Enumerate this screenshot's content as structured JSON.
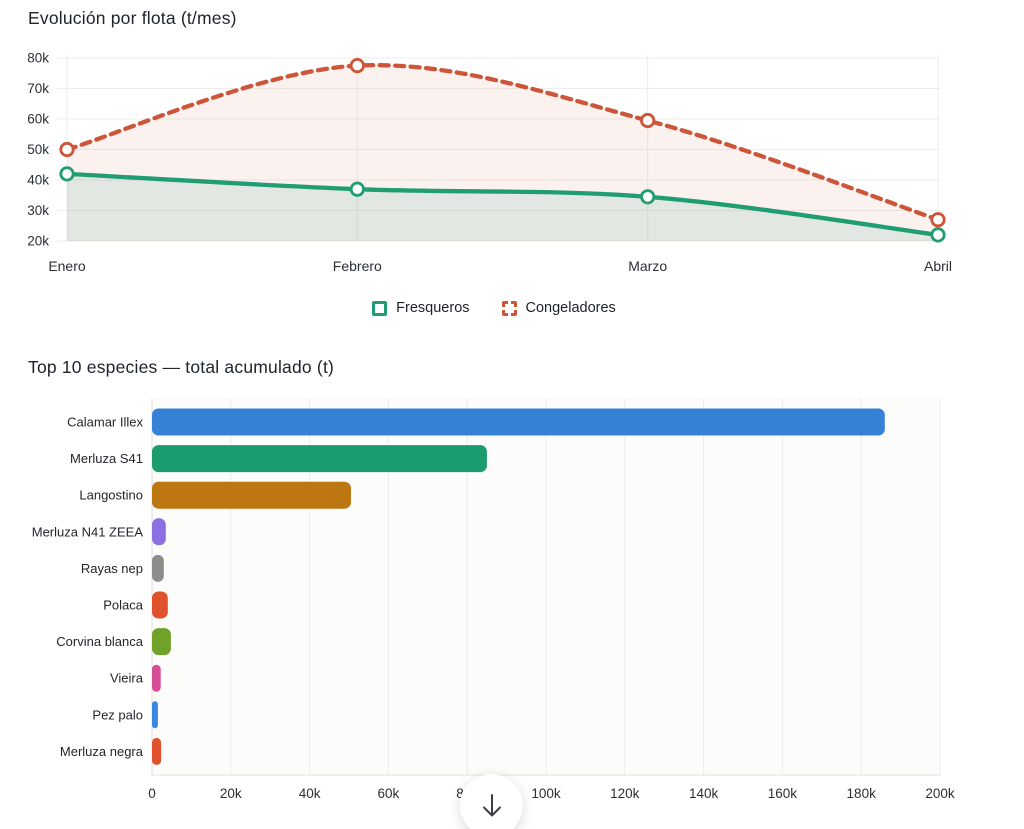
{
  "chart_data": [
    {
      "type": "line",
      "title": "Evolución por flota (t/mes)",
      "x": [
        "Enero",
        "Febrero",
        "Marzo",
        "Abril"
      ],
      "series": [
        {
          "name": "Fresqueros",
          "values": [
            42000,
            37000,
            34500,
            22000
          ],
          "color": "#219d74",
          "line_style": "solid",
          "fill": "rgba(27,158,119,0.11)"
        },
        {
          "name": "Congeladores",
          "values": [
            50000,
            77500,
            59500,
            27000
          ],
          "color": "#cd563a",
          "line_style": "dashed",
          "fill": "rgba(205,85,55,0.08)"
        }
      ],
      "ylim": [
        20000,
        80000
      ],
      "y_ticks": [
        {
          "value": 80000,
          "label": "80k"
        },
        {
          "value": 70000,
          "label": "70k"
        },
        {
          "value": 60000,
          "label": "60k"
        },
        {
          "value": 50000,
          "label": "50k"
        },
        {
          "value": 40000,
          "label": "40k"
        },
        {
          "value": 30000,
          "label": "30k"
        },
        {
          "value": 20000,
          "label": "20k"
        }
      ],
      "grid": true,
      "legend_position": "bottom"
    },
    {
      "type": "bar",
      "orientation": "horizontal",
      "title": "Top 10 especies — total acumulado (t)",
      "categories": [
        "Calamar Illex",
        "Merluza S41",
        "Langostino",
        "Merluza N41 ZEEA",
        "Rayas nep",
        "Polaca",
        "Corvina blanca",
        "Vieira",
        "Pez palo",
        "Merluza negra"
      ],
      "values": [
        186000,
        85000,
        50500,
        3500,
        3000,
        4000,
        4800,
        2200,
        1500,
        2300
      ],
      "colors": [
        "#3581d8",
        "#1b9c6e",
        "#bd7712",
        "#8a70e2",
        "#8c8c8c",
        "#e1512d",
        "#70a22a",
        "#d84d97",
        "#3b87dd",
        "#e1512d"
      ],
      "xlim": [
        0,
        200000
      ],
      "x_ticks": [
        {
          "value": 0,
          "label": "0"
        },
        {
          "value": 20000,
          "label": "20k"
        },
        {
          "value": 40000,
          "label": "40k"
        },
        {
          "value": 60000,
          "label": "60k"
        },
        {
          "value": 80000,
          "label": "80k"
        },
        {
          "value": 100000,
          "label": "100k"
        },
        {
          "value": 120000,
          "label": "120k"
        },
        {
          "value": 140000,
          "label": "140k"
        },
        {
          "value": 160000,
          "label": "160k"
        },
        {
          "value": 180000,
          "label": "180k"
        },
        {
          "value": 200000,
          "label": "200k"
        }
      ],
      "grid": true
    }
  ],
  "floating_button": {
    "glyph": "↓",
    "action": "scroll-down"
  }
}
